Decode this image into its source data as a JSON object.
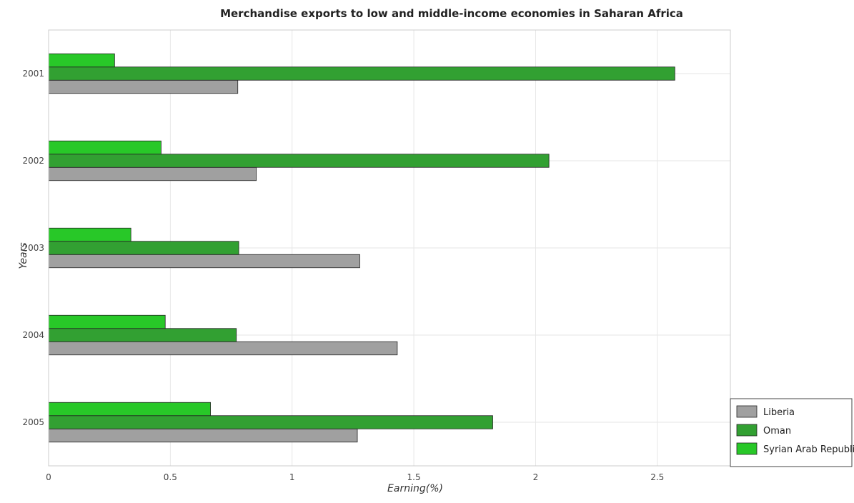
{
  "chart_data": {
    "type": "bar",
    "orientation": "horizontal",
    "title": "Merchandise exports to low and middle-income economies in Saharan Africa",
    "xlabel": "Earning(%)",
    "ylabel": "Years",
    "categories": [
      "2001",
      "2002",
      "2003",
      "2004",
      "2005"
    ],
    "xlim": [
      0,
      2.8
    ],
    "xticks": [
      0,
      0.5,
      1,
      1.5,
      2,
      2.5
    ],
    "xtick_labels": [
      "0",
      "0.5",
      "1",
      "1.5",
      "2",
      "2.5"
    ],
    "grid": true,
    "legend_position": "bottom-right",
    "series": [
      {
        "name": "Liberia",
        "color": "#a0a0a0",
        "values": [
          0.777,
          0.853,
          1.278,
          1.432,
          1.268
        ]
      },
      {
        "name": "Oman",
        "color": "#32a032",
        "values": [
          2.572,
          2.055,
          0.781,
          0.771,
          1.824
        ]
      },
      {
        "name": "Syrian Arab Republic",
        "color": "#28c828",
        "values": [
          0.271,
          0.462,
          0.338,
          0.479,
          0.665
        ]
      }
    ]
  }
}
